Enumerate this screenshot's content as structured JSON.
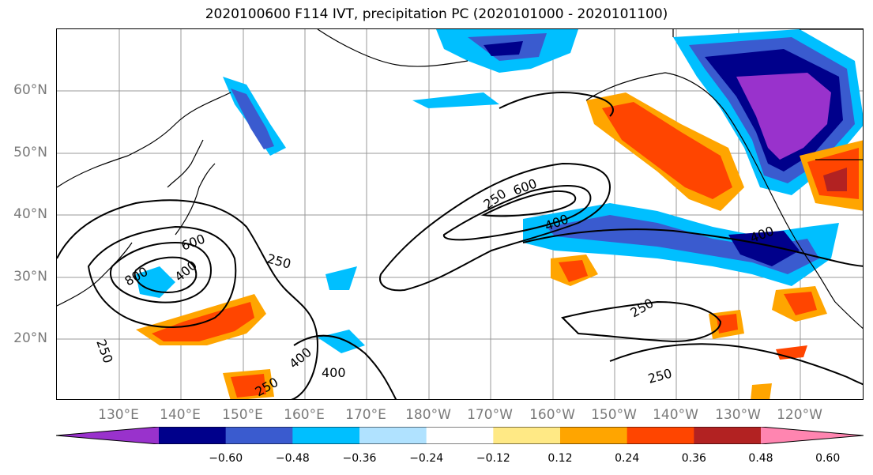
{
  "title": "2020100600 F114 IVT, precipitation PC (2020101000 - 2020101100)",
  "lat_labels": [
    "60°N",
    "50°N",
    "40°N",
    "30°N",
    "20°N"
  ],
  "lon_labels": [
    "130°E",
    "140°E",
    "150°E",
    "160°E",
    "170°E",
    "180°W",
    "170°W",
    "160°W",
    "150°W",
    "140°W",
    "130°W",
    "120°W"
  ],
  "colorbar": {
    "colors": [
      "#9932cc",
      "#00008b",
      "#3a5bcf",
      "#00bfff",
      "#b0e2ff",
      "#ffffff",
      "#ffe985",
      "#ffa500",
      "#ff4500",
      "#b22222",
      "#ff85b0"
    ],
    "ticks": [
      "−0.60",
      "−0.48",
      "−0.36",
      "−0.24",
      "−0.12",
      "0.12",
      "0.24",
      "0.36",
      "0.48",
      "0.60"
    ]
  },
  "contour_labels": [
    "250",
    "400",
    "600",
    "800"
  ],
  "contour_values": [
    250,
    400,
    600,
    800
  ]
}
